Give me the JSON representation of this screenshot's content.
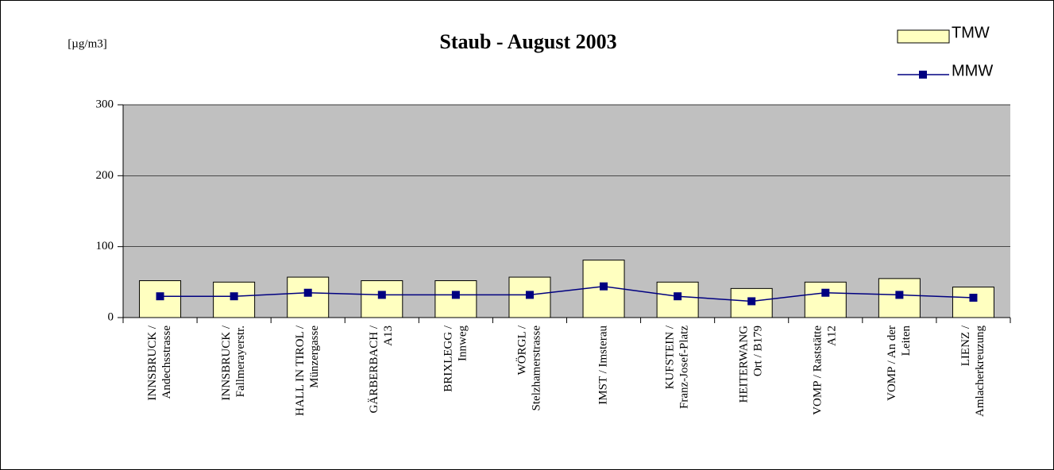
{
  "chart_data": {
    "type": "bar-line",
    "title": "Staub - August 2003",
    "y_label": "[µg/m3]",
    "categories": [
      [
        "INNSBRUCK /",
        "Andechsstrasse"
      ],
      [
        "INNSBRUCK /",
        "Fallmerayerstr."
      ],
      [
        "HALL IN TIROL /",
        "Münzergasse"
      ],
      [
        "GÄRBERBACH /",
        "A13"
      ],
      [
        "BRIXLEGG /",
        "Innweg"
      ],
      [
        "WÖRGL /",
        "Stelzhamerstrasse"
      ],
      [
        "IMST / Imsterau"
      ],
      [
        "KUFSTEIN /",
        "Franz-Josef-Platz"
      ],
      [
        "HEITERWANG",
        "Ort / B179"
      ],
      [
        "VOMP / Raststätte",
        "A12"
      ],
      [
        "VOMP / An der",
        "Leiten"
      ],
      [
        "LIENZ /",
        "Amlacherkreuzung"
      ]
    ],
    "series": [
      {
        "name": "TMW",
        "type": "bar",
        "color": "#ffffc0",
        "values": [
          52,
          50,
          57,
          52,
          52,
          57,
          81,
          50,
          41,
          50,
          55,
          43
        ]
      },
      {
        "name": "MMW",
        "type": "line",
        "color": "#000080",
        "values": [
          30,
          30,
          35,
          32,
          32,
          32,
          44,
          30,
          23,
          35,
          32,
          28
        ]
      }
    ],
    "ylim": [
      0,
      300
    ],
    "yticks": [
      0,
      100,
      200,
      300
    ],
    "grid": true,
    "legend": "top-right",
    "plot_background": "#c0c0c0"
  }
}
